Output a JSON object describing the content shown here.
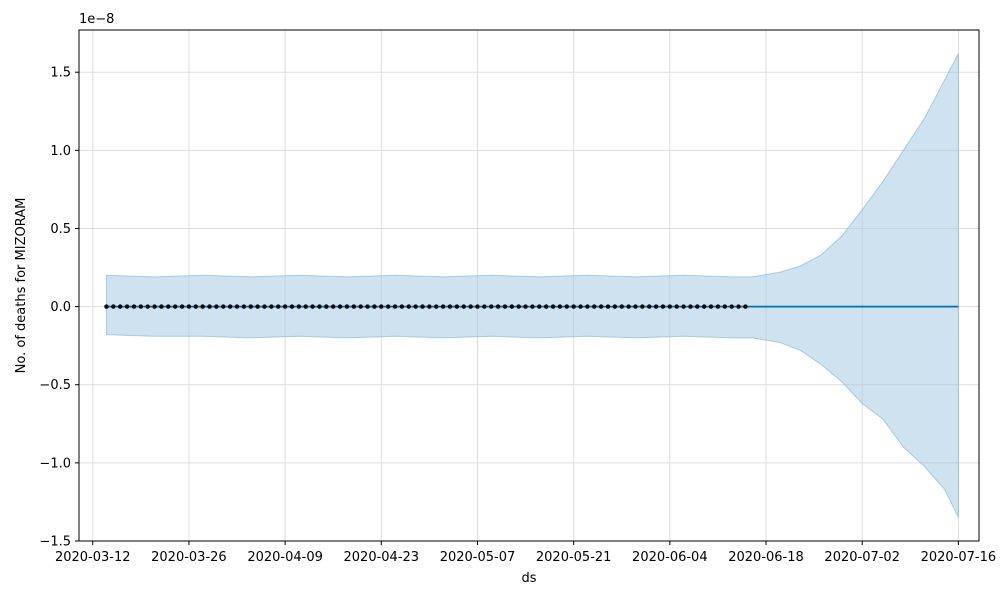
{
  "chart_data": {
    "type": "line",
    "xlabel": "ds",
    "ylabel": "No. of deaths for MIZORAM",
    "y_offset_label": "1e−8",
    "x_tick_labels": [
      "2020-03-12",
      "2020-03-26",
      "2020-04-09",
      "2020-04-23",
      "2020-05-07",
      "2020-05-21",
      "2020-06-04",
      "2020-06-18",
      "2020-07-02",
      "2020-07-16"
    ],
    "x_ticks": [
      "2020-03-12",
      "2020-03-26",
      "2020-04-09",
      "2020-04-23",
      "2020-05-07",
      "2020-05-21",
      "2020-06-04",
      "2020-06-18",
      "2020-07-02",
      "2020-07-16"
    ],
    "y_tick_labels": [
      "−1.5",
      "−1.0",
      "−0.5",
      "0.0",
      "0.5",
      "1.0",
      "1.5"
    ],
    "y_ticks": [
      -1.5,
      -1.0,
      -0.5,
      0.0,
      0.5,
      1.0,
      1.5
    ],
    "xlim": [
      "2020-03-10",
      "2020-07-19"
    ],
    "ylim": [
      -1.5,
      1.77
    ],
    "grid": true,
    "observed": {
      "x_start": "2020-03-14",
      "x_end": "2020-06-15",
      "value": 0.0
    },
    "forecast": {
      "x_start": "2020-03-14",
      "x_end": "2020-07-16",
      "value": 0.0
    },
    "uncertainty_band": {
      "x": [
        "2020-03-14",
        "2020-03-21",
        "2020-03-28",
        "2020-04-04",
        "2020-04-11",
        "2020-04-18",
        "2020-04-25",
        "2020-05-02",
        "2020-05-09",
        "2020-05-16",
        "2020-05-23",
        "2020-05-30",
        "2020-06-06",
        "2020-06-13",
        "2020-06-16",
        "2020-06-20",
        "2020-06-23",
        "2020-06-26",
        "2020-06-29",
        "2020-07-02",
        "2020-07-05",
        "2020-07-08",
        "2020-07-11",
        "2020-07-14",
        "2020-07-16"
      ],
      "upper": [
        0.2,
        0.19,
        0.2,
        0.19,
        0.2,
        0.19,
        0.2,
        0.19,
        0.2,
        0.19,
        0.2,
        0.19,
        0.2,
        0.19,
        0.19,
        0.22,
        0.26,
        0.33,
        0.45,
        0.62,
        0.8,
        1.0,
        1.2,
        1.45,
        1.62
      ],
      "lower": [
        -0.18,
        -0.19,
        -0.19,
        -0.2,
        -0.19,
        -0.2,
        -0.19,
        -0.2,
        -0.19,
        -0.2,
        -0.19,
        -0.2,
        -0.19,
        -0.2,
        -0.2,
        -0.23,
        -0.28,
        -0.37,
        -0.48,
        -0.62,
        -0.72,
        -0.9,
        -1.02,
        -1.17,
        -1.35
      ]
    },
    "colors": {
      "band": "#a6cbe3",
      "band_edge": "#7fb2d5",
      "forecast_line": "#0072b2",
      "observed_point": "#000000",
      "grid": "#dddddd"
    }
  }
}
